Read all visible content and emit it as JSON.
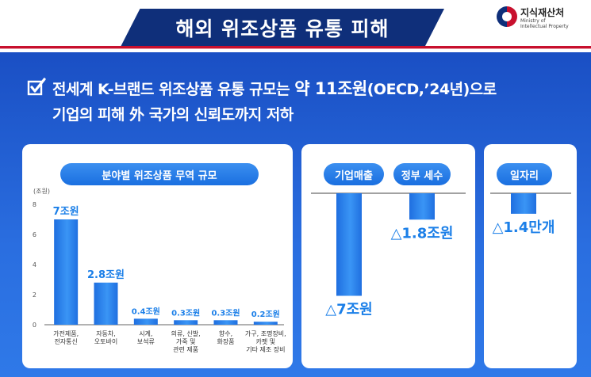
{
  "header": {
    "title": "해외 위조상품 유통 피해",
    "logo_ko": "지식재산처",
    "logo_en_line1": "Ministry of",
    "logo_en_line2": "Intellectual Property"
  },
  "headline": {
    "line1_prefix": "전세계 K-브랜드 위조상품 유통 규모는 ",
    "line1_emph": "약 11조원",
    "line1_suffix": "(OECD,’24년)으로",
    "line2": "기업의 피해 外 국가의 신뢰도까지 저하"
  },
  "colors": {
    "navy": "#0f2f7a",
    "accent_red": "#c8102e",
    "panel_blue": "#2a6ee0",
    "bar_blue": "#2b8af0",
    "label_blue": "#1b7fe8"
  },
  "chart_data": [
    {
      "type": "bar",
      "title": "분야별 위조상품 무역 규모",
      "ylabel": "(조원)",
      "ylim": [
        0,
        8
      ],
      "yticks": [
        0,
        2,
        4,
        6,
        8
      ],
      "categories": [
        "가전제품,\n전자통신",
        "자동차,\n오토바이",
        "시계,\n보석류",
        "의류, 신발,\n가죽 및\n관련 제품",
        "향수,\n화장품",
        "가구, 조명장비,\n카펫 및\n기타 제조 장비"
      ],
      "values": [
        7,
        2.8,
        0.4,
        0.3,
        0.3,
        0.2
      ],
      "data_labels": [
        "7조원",
        "2.8조원",
        "0.4조원",
        "0.3조원",
        "0.3조원",
        "0.2조원"
      ]
    },
    {
      "type": "bar",
      "orientation": "downward",
      "categories": [
        "기업매출",
        "정부 세수"
      ],
      "values": [
        -7,
        -1.8
      ],
      "data_labels": [
        "△7조원",
        "△1.8조원"
      ]
    },
    {
      "type": "bar",
      "orientation": "downward",
      "categories": [
        "일자리"
      ],
      "values": [
        -1.4
      ],
      "data_labels": [
        "△1.4만개"
      ]
    }
  ]
}
